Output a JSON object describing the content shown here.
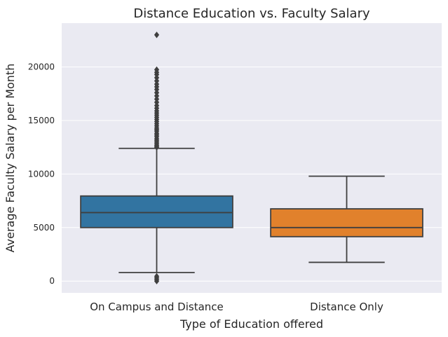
{
  "chart_data": {
    "type": "box",
    "title": "Distance Education vs. Faculty Salary",
    "xlabel": "Type of Education offered",
    "ylabel": "Average Faculty Salary per Month",
    "ylim": [
      -1100,
      24100
    ],
    "yticks": [
      0,
      5000,
      10000,
      15000,
      20000
    ],
    "ytick_labels": [
      "0",
      "5000",
      "10000",
      "15000",
      "20000"
    ],
    "grid": true,
    "categories": [
      "On Campus and Distance",
      "Distance Only"
    ],
    "colors": [
      "#3274a1",
      "#e1812c"
    ],
    "background": "#eaeaf2",
    "boxes": [
      {
        "category": "On Campus and Distance",
        "whisker_low": 800,
        "q1": 5000,
        "median": 6400,
        "q3": 7950,
        "whisker_high": 12400,
        "outliers": [
          0,
          150,
          300,
          450,
          12500,
          12600,
          12700,
          12850,
          13000,
          13150,
          13300,
          13500,
          13650,
          13800,
          14000,
          14150,
          14300,
          14500,
          14700,
          14900,
          15100,
          15300,
          15500,
          15700,
          15900,
          16150,
          16400,
          16700,
          17000,
          17300,
          17600,
          17900,
          18150,
          18400,
          18700,
          19000,
          19300,
          19500,
          19750,
          23000
        ]
      },
      {
        "category": "Distance Only",
        "whisker_low": 1750,
        "q1": 4150,
        "median": 5000,
        "q3": 6750,
        "whisker_high": 9800,
        "outliers": []
      }
    ]
  }
}
